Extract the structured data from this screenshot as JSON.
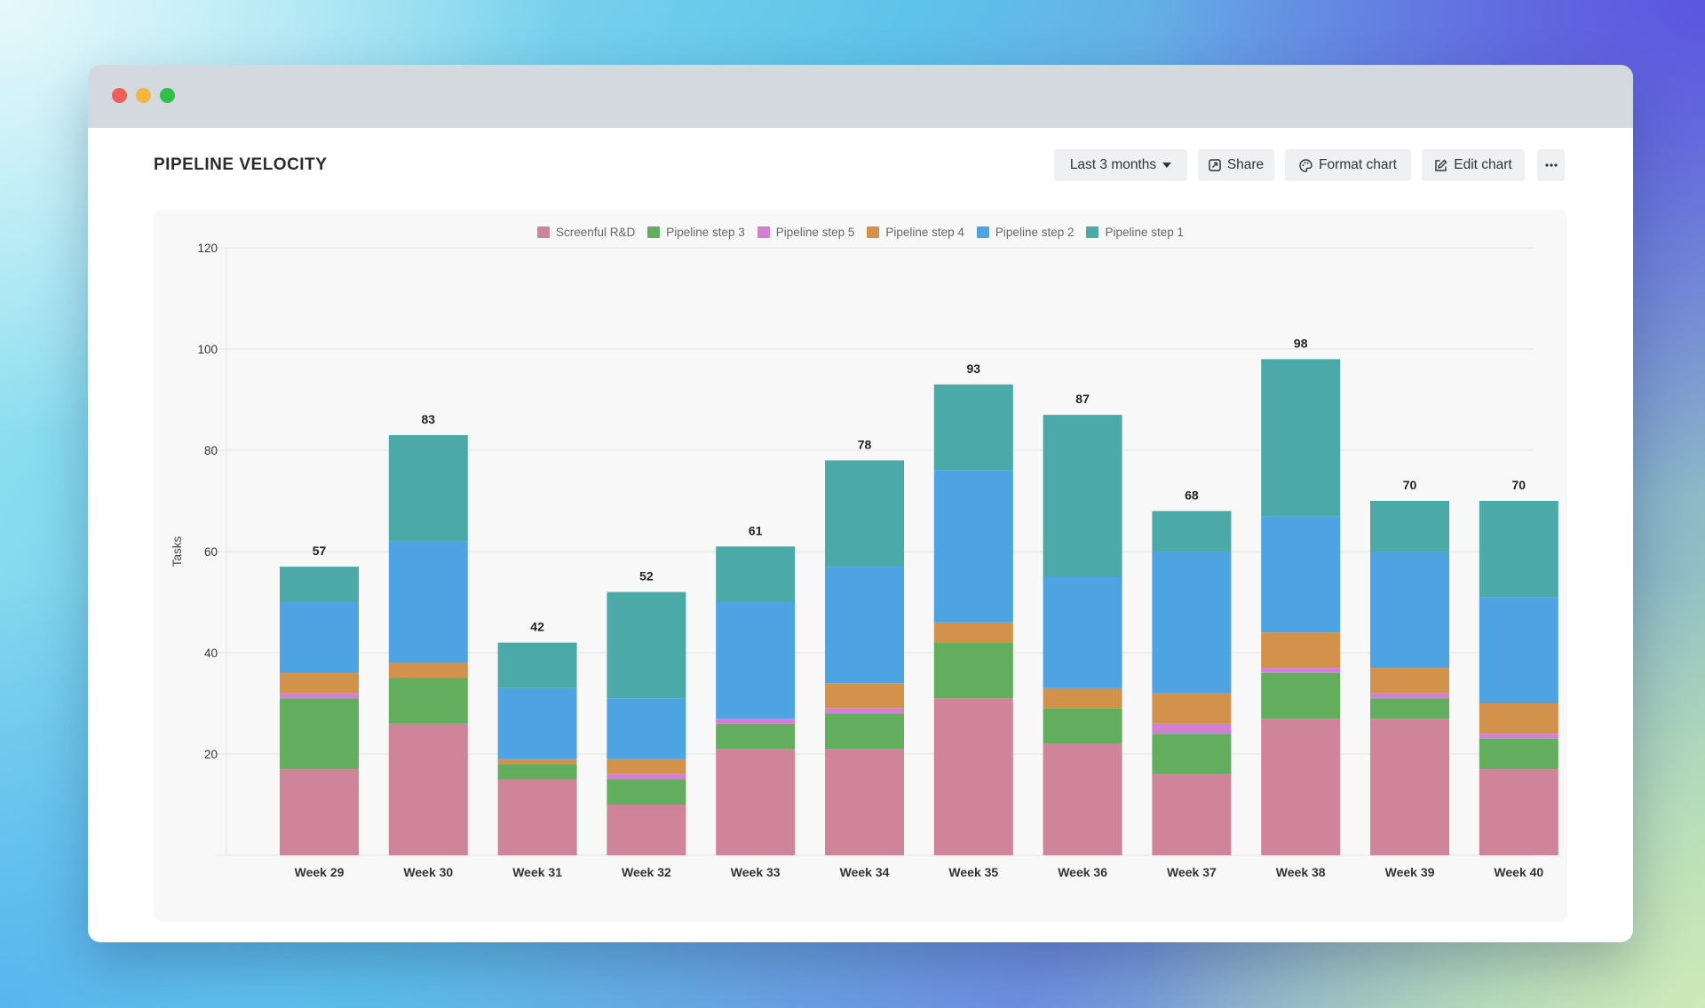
{
  "window": {
    "controls": [
      "close",
      "minimize",
      "maximize"
    ]
  },
  "header": {
    "title": "PIPELINE VELOCITY"
  },
  "toolbar": {
    "range_label": "Last 3 months",
    "share_label": "Share",
    "format_label": "Format chart",
    "edit_label": "Edit chart",
    "more_icon": "ellipsis-icon"
  },
  "chart_data": {
    "type": "bar",
    "stacked": true,
    "ylabel": "Tasks",
    "xlabel": "",
    "ylim": [
      0,
      120
    ],
    "yticks": [
      20,
      40,
      60,
      80,
      100,
      120
    ],
    "grid": true,
    "legend_position": "top-center",
    "categories": [
      "Week 29",
      "Week 30",
      "Week 31",
      "Week 32",
      "Week 33",
      "Week 34",
      "Week 35",
      "Week 36",
      "Week 37",
      "Week 38",
      "Week 39",
      "Week 40"
    ],
    "totals": [
      57,
      83,
      42,
      52,
      61,
      78,
      93,
      87,
      68,
      98,
      70,
      70
    ],
    "legend": [
      "Screenful R&D",
      "Pipeline step 3",
      "Pipeline step 5",
      "Pipeline step 4",
      "Pipeline step 2",
      "Pipeline step 1"
    ],
    "series": [
      {
        "name": "Screenful R&D",
        "color": "#d0849a",
        "values": [
          17,
          26,
          15,
          10,
          21,
          21,
          31,
          22,
          16,
          27,
          27,
          17
        ]
      },
      {
        "name": "Pipeline step 3",
        "color": "#62ad5e",
        "values": [
          14,
          9,
          3,
          5,
          5,
          7,
          11,
          7,
          8,
          9,
          4,
          6
        ]
      },
      {
        "name": "Pipeline step 5",
        "color": "#d27fd6",
        "values": [
          1,
          0,
          0,
          1,
          1,
          1,
          0,
          0,
          2,
          1,
          1,
          1
        ]
      },
      {
        "name": "Pipeline step 4",
        "color": "#d3924c",
        "values": [
          4,
          3,
          1,
          3,
          0,
          5,
          4,
          4,
          6,
          7,
          5,
          6
        ]
      },
      {
        "name": "Pipeline step 2",
        "color": "#4ea3e3",
        "values": [
          14,
          24,
          14,
          12,
          23,
          23,
          30,
          22,
          28,
          23,
          23,
          21
        ]
      },
      {
        "name": "Pipeline step 1",
        "color": "#4baaa7",
        "values": [
          7,
          21,
          9,
          21,
          11,
          21,
          17,
          32,
          8,
          31,
          10,
          19
        ]
      }
    ]
  }
}
